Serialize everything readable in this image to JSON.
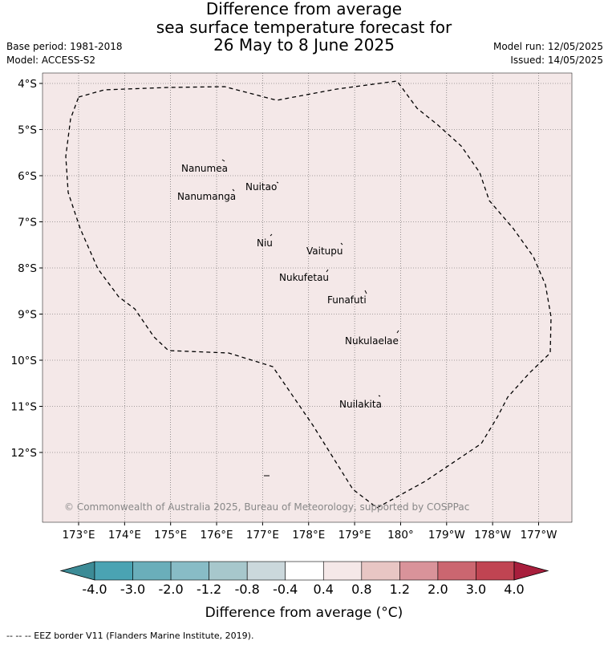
{
  "title_lines": [
    "Difference from average",
    "sea surface temperature forecast for",
    "26 May to 8 June 2025"
  ],
  "meta": {
    "base_period": "Base period: 1981-2018",
    "model": "Model: ACCESS-S2",
    "model_run": "Model run: 12/05/2025",
    "issued": "Issued: 14/05/2025"
  },
  "map": {
    "background_color": "#f4e8e8",
    "lat_ticks": [
      "4°S",
      "5°S",
      "6°S",
      "7°S",
      "8°S",
      "9°S",
      "10°S",
      "11°S",
      "12°S"
    ],
    "lon_ticks": [
      "173°E",
      "174°E",
      "175°E",
      "176°E",
      "177°E",
      "178°E",
      "179°E",
      "180°",
      "179°W",
      "178°W",
      "177°W"
    ],
    "islands": [
      {
        "name": "Nanumea"
      },
      {
        "name": "Nuitao"
      },
      {
        "name": "Nanumanga"
      },
      {
        "name": "Niu"
      },
      {
        "name": "Vaitupu"
      },
      {
        "name": "Nukufetau"
      },
      {
        "name": "Funafuti"
      },
      {
        "name": "Nukulaelae"
      },
      {
        "name": "Nuilakita"
      }
    ],
    "copyright": "© Commonwealth of Australia 2025, Bureau of Meteorology, supported by COSPPac"
  },
  "colorbar": {
    "tick_labels": [
      "-4.0",
      "-3.0",
      "-2.0",
      "-1.2",
      "-0.8",
      "-0.4",
      "0.4",
      "0.8",
      "1.2",
      "2.0",
      "3.0",
      "4.0"
    ],
    "colors": [
      "#4aa3b3",
      "#6aaeba",
      "#88bcc6",
      "#a7c7cc",
      "#cbd8dc",
      "#ffffff",
      "#f5e8e8",
      "#e8c6c4",
      "#d9939a",
      "#cb6670",
      "#c04452"
    ],
    "under_color": "#3c8b96",
    "over_color": "#a81e3c",
    "label": "Difference from average (°C)"
  },
  "footer": "--  --  -- EEZ border V11 (Flanders Marine Institute, 2019)."
}
